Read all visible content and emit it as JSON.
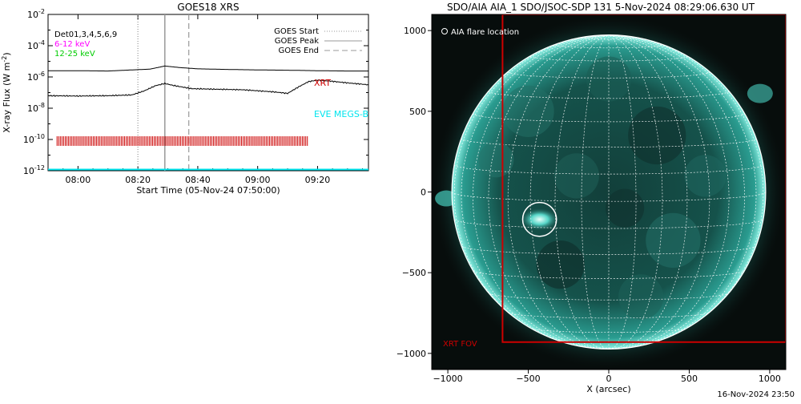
{
  "colors": {
    "background": "#ffffff",
    "axis": "#000000",
    "xrt": "#cc0000",
    "eve": "#00e5ee",
    "low_channel": "#ff00ff",
    "high_channel": "#00cc00",
    "aia_disk": "#2aa9a0",
    "grid": "#ffffff"
  },
  "chart_data": [
    {
      "type": "line",
      "title": "GOES18 XRS",
      "xlabel": "Start Time (05-Nov-24 07:50:00)",
      "ylabel": "X-ray Flux (W m-2)",
      "ylabel_parts": {
        "main": "X-ray Flux (W m",
        "sup": "-2",
        "tail": ")"
      },
      "yscale": "log",
      "ylim_exp": [
        -12,
        -2
      ],
      "xlim_minutes": [
        0,
        107
      ],
      "x_ticks": [
        {
          "minute": 10,
          "label": "08:00"
        },
        {
          "minute": 30,
          "label": "08:20"
        },
        {
          "minute": 50,
          "label": "08:40"
        },
        {
          "minute": 70,
          "label": "09:00"
        },
        {
          "minute": 90,
          "label": "09:20"
        }
      ],
      "y_ticks": [
        {
          "exp": -2,
          "label": "10",
          "sup": "-2"
        },
        {
          "exp": -4,
          "label": "10",
          "sup": "-4"
        },
        {
          "exp": -6,
          "label": "10",
          "sup": "-6"
        },
        {
          "exp": -8,
          "label": "10",
          "sup": "-8"
        },
        {
          "exp": -10,
          "label": "10",
          "sup": "-10"
        },
        {
          "exp": -12,
          "label": "10",
          "sup": "-12"
        }
      ],
      "legend_left": [
        {
          "text": "Det01,3,4,5,6,9",
          "color": "#000000"
        },
        {
          "text": "6-12 keV",
          "color": "#ff00ff"
        },
        {
          "text": "12-25 keV",
          "color": "#00cc00"
        }
      ],
      "legend_right": [
        {
          "text": "GOES Start",
          "style": "dotted"
        },
        {
          "text": "GOES Peak",
          "style": "solid"
        },
        {
          "text": "GOES End",
          "style": "dashed"
        }
      ],
      "vlines": [
        {
          "name": "GOES Start",
          "minute": 30,
          "style": "dotted"
        },
        {
          "name": "GOES Peak",
          "minute": 39,
          "style": "solid"
        },
        {
          "name": "GOES End",
          "minute": 47,
          "style": "dashed"
        }
      ],
      "series": [
        {
          "name": "long channel",
          "color": "#000000",
          "points": [
            [
              0,
              -5.6
            ],
            [
              10,
              -5.6
            ],
            [
              20,
              -5.62
            ],
            [
              28,
              -5.55
            ],
            [
              34,
              -5.5
            ],
            [
              39,
              -5.3
            ],
            [
              44,
              -5.4
            ],
            [
              50,
              -5.48
            ],
            [
              60,
              -5.52
            ],
            [
              70,
              -5.55
            ],
            [
              80,
              -5.57
            ],
            [
              90,
              -5.6
            ],
            [
              100,
              -5.62
            ],
            [
              107,
              -5.62
            ]
          ]
        },
        {
          "name": "short channel",
          "color": "#000000",
          "points": [
            [
              0,
              -7.2
            ],
            [
              10,
              -7.22
            ],
            [
              20,
              -7.2
            ],
            [
              28,
              -7.15
            ],
            [
              32,
              -6.9
            ],
            [
              36,
              -6.55
            ],
            [
              39,
              -6.42
            ],
            [
              42,
              -6.55
            ],
            [
              48,
              -6.75
            ],
            [
              55,
              -6.78
            ],
            [
              65,
              -6.82
            ],
            [
              75,
              -6.95
            ],
            [
              80,
              -7.05
            ],
            [
              84,
              -6.6
            ],
            [
              87,
              -6.3
            ],
            [
              90,
              -6.2
            ],
            [
              95,
              -6.28
            ],
            [
              100,
              -6.38
            ],
            [
              107,
              -6.5
            ]
          ]
        }
      ],
      "labels": [
        {
          "text": "XRT",
          "color": "#cc0000"
        },
        {
          "text": "EVE MEGS-B",
          "color": "#00e5ee"
        }
      ],
      "xrt_obs_band": {
        "exp": -10.1,
        "start_minute": 3,
        "end_minute": 87
      }
    },
    {
      "type": "scatter",
      "title": "SDO/AIA AIA_1 SDO/JSOC-SDP 131  5-Nov-2024 08:29:06.630 UT",
      "xlabel": "X (arcsec)",
      "ylabel": "",
      "xlim": [
        -1100,
        1100
      ],
      "ylim": [
        -1100,
        1100
      ],
      "x_ticks": [
        -1000,
        -500,
        0,
        500,
        1000
      ],
      "y_ticks": [
        1000,
        500,
        0,
        -500,
        -1000
      ],
      "solar_radius_arcsec": 975,
      "flare_location": {
        "label": "AIA flare location",
        "x": -430,
        "y": -170,
        "radius": 105
      },
      "xrt_fov": {
        "label": "XRT FOV",
        "x0": -660,
        "x1": 1100,
        "y0": -930,
        "y1": 1100
      }
    }
  ],
  "footer": {
    "timestamp": "16-Nov-2024 23:50"
  }
}
